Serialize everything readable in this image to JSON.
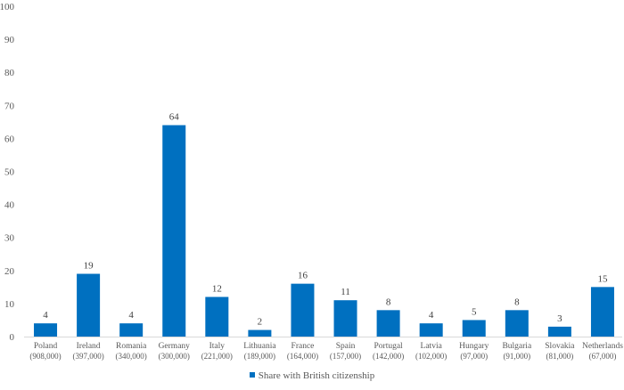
{
  "chart_data": {
    "type": "bar",
    "categories": [
      {
        "name": "Poland",
        "population": "(908,000)"
      },
      {
        "name": "Ireland",
        "population": "(397,000)"
      },
      {
        "name": "Romania",
        "population": "(340,000)"
      },
      {
        "name": "Germany",
        "population": "(300,000)"
      },
      {
        "name": "Italy",
        "population": "(221,000)"
      },
      {
        "name": "Lithuania",
        "population": "(189,000)"
      },
      {
        "name": "France",
        "population": "(164,000)"
      },
      {
        "name": "Spain",
        "population": "(157,000)"
      },
      {
        "name": "Portugal",
        "population": "(142,000)"
      },
      {
        "name": "Latvia",
        "population": "(102,000)"
      },
      {
        "name": "Hungary",
        "population": "(97,000)"
      },
      {
        "name": "Bulgaria",
        "population": "(91,000)"
      },
      {
        "name": "Slovakia",
        "population": "(81,000)"
      },
      {
        "name": "Netherlands",
        "population": "(67,000)"
      }
    ],
    "series": [
      {
        "name": "Share with British citizenship",
        "values": [
          4,
          19,
          4,
          64,
          12,
          2,
          16,
          11,
          8,
          4,
          5,
          8,
          3,
          15
        ]
      }
    ],
    "yticks": [
      0,
      10,
      20,
      30,
      40,
      50,
      60,
      70,
      80,
      90,
      100
    ],
    "ylim": [
      0,
      100
    ],
    "grid": false,
    "data_labels": true,
    "legend_position": "bottom",
    "bar_color": "#0070C0"
  }
}
